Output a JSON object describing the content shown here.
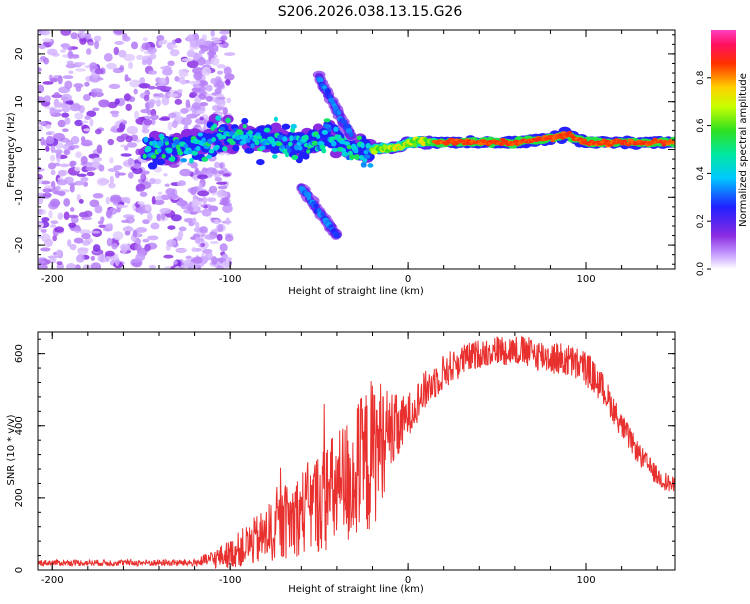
{
  "title": "S206.2026.038.13.15.G26",
  "colors": {
    "snr_line": "#e8302e",
    "axis": "#000000",
    "background": "#ffffff"
  },
  "chart_data": [
    {
      "type": "heatmap",
      "name": "spectrogram",
      "xlabel": "Height of straight line (km)",
      "ylabel": "Frequency (Hz)",
      "xlim": [
        -208,
        150
      ],
      "ylim": [
        -25,
        25
      ],
      "xticks": [
        -200,
        -100,
        0,
        100
      ],
      "yticks": [
        -20,
        -10,
        0,
        10,
        20
      ],
      "colorbar": {
        "label": "Normalized spectral amplitude",
        "range": [
          0,
          1
        ],
        "ticks": [
          "0.0",
          "0.2",
          "0.4",
          "0.6",
          "0.8"
        ]
      },
      "ridges": [
        {
          "desc": "main carrier",
          "points": [
            [
              -148,
              0
            ],
            [
              -120,
              1
            ],
            [
              -105,
              3
            ],
            [
              -80,
              2
            ],
            [
              -60,
              1
            ],
            [
              -45,
              3
            ],
            [
              -30,
              0
            ],
            [
              -20,
              0
            ],
            [
              -5,
              0.5
            ],
            [
              0,
              1.5
            ],
            [
              20,
              1.5
            ],
            [
              60,
              1.5
            ],
            [
              75,
              2
            ],
            [
              90,
              3
            ],
            [
              100,
              1.5
            ],
            [
              120,
              1.5
            ],
            [
              150,
              1.5
            ]
          ]
        },
        {
          "desc": "upper branch",
          "points": [
            [
              -50,
              15
            ],
            [
              -40,
              8
            ],
            [
              -32,
              3
            ]
          ]
        },
        {
          "desc": "lower branch",
          "points": [
            [
              -60,
              -8
            ],
            [
              -48,
              -14
            ],
            [
              -40,
              -18
            ]
          ]
        }
      ],
      "noise_region_km": [
        -208,
        -115
      ]
    },
    {
      "type": "line",
      "name": "snr",
      "xlabel": "Height of straight line (km)",
      "ylabel": "SNR (10 * v/v)",
      "xlim": [
        -208,
        150
      ],
      "ylim": [
        0,
        660
      ],
      "xticks": [
        -200,
        -100,
        0,
        100
      ],
      "yticks": [
        0,
        200,
        400,
        600
      ],
      "series": [
        {
          "name": "SNR",
          "envelope": {
            "x": [
              -208,
              -120,
              -110,
              -100,
              -80,
              -60,
              -40,
              -30,
              -20,
              -15,
              -10,
              -5,
              0,
              10,
              20,
              30,
              40,
              50,
              60,
              70,
              80,
              90,
              100,
              110,
              120,
              130,
              140,
              150
            ],
            "y": [
              20,
              20,
              30,
              45,
              95,
              160,
              220,
              260,
              320,
              360,
              380,
              390,
              430,
              500,
              550,
              580,
              600,
              610,
              610,
              600,
              590,
              580,
              560,
              500,
              400,
              320,
              260,
              230
            ]
          },
          "noise_amplitude": {
            "x": [
              -208,
              -120,
              -100,
              -60,
              -20,
              -10,
              0,
              40,
              100,
              130,
              150
            ],
            "y": [
              8,
              10,
              40,
              120,
              220,
              120,
              60,
              40,
              50,
              30,
              25
            ]
          }
        }
      ]
    }
  ]
}
